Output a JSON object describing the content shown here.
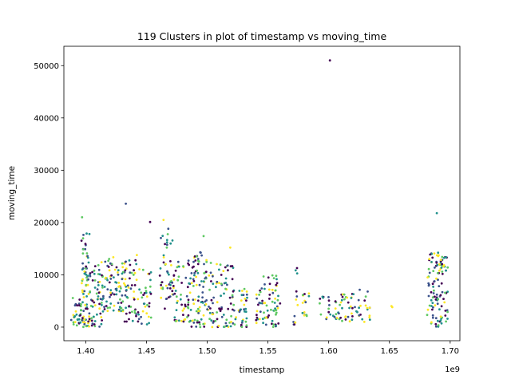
{
  "chart_data": {
    "type": "scatter",
    "title": "119 Clusters in plot of timestamp vs moving_time",
    "xlabel": "timestamp",
    "ylabel": "moving_time",
    "x_offset_label": "1e9",
    "x_scale": 1000000000,
    "xlim": [
      1.382,
      1.708
    ],
    "ylim": [
      -2600,
      53700
    ],
    "x_ticks": [
      1.4,
      1.45,
      1.5,
      1.55,
      1.6,
      1.65,
      1.7
    ],
    "x_tick_labels": [
      "1.40",
      "1.45",
      "1.50",
      "1.55",
      "1.60",
      "1.65",
      "1.70"
    ],
    "y_ticks": [
      0,
      10000,
      20000,
      30000,
      40000,
      50000
    ],
    "y_tick_labels": [
      "0",
      "10000",
      "20000",
      "30000",
      "40000",
      "50000"
    ],
    "grid": false,
    "legend": "none",
    "colormap": "viridis",
    "palette": [
      "#440154",
      "#3b528b",
      "#21918c",
      "#5ec962",
      "#fde725"
    ],
    "notable_points": [
      {
        "x": 1.601,
        "y": 51000
      },
      {
        "x": 1.433,
        "y": 23600
      },
      {
        "x": 1.689,
        "y": 21800
      },
      {
        "x": 1.397,
        "y": 21000
      },
      {
        "x": 1.464,
        "y": 20500
      },
      {
        "x": 1.453,
        "y": 20100
      },
      {
        "x": 1.468,
        "y": 18800
      },
      {
        "x": 1.403,
        "y": 17800
      },
      {
        "x": 1.497,
        "y": 17400
      },
      {
        "x": 1.519,
        "y": 15200
      }
    ],
    "clusters": [
      {
        "x_range": [
          1.388,
          1.396
        ],
        "y_range": [
          0,
          6500
        ],
        "n": 28
      },
      {
        "x_range": [
          1.396,
          1.402
        ],
        "y_range": [
          0,
          18000
        ],
        "n": 65
      },
      {
        "x_range": [
          1.402,
          1.414
        ],
        "y_range": [
          0,
          13000
        ],
        "n": 70
      },
      {
        "x_range": [
          1.414,
          1.432
        ],
        "y_range": [
          3000,
          13500
        ],
        "n": 80
      },
      {
        "x_range": [
          1.432,
          1.445
        ],
        "y_range": [
          1000,
          14500
        ],
        "n": 55
      },
      {
        "x_range": [
          1.445,
          1.454
        ],
        "y_range": [
          500,
          11000
        ],
        "n": 30
      },
      {
        "x_range": [
          1.461,
          1.472
        ],
        "y_range": [
          3000,
          18500
        ],
        "n": 45
      },
      {
        "x_range": [
          1.472,
          1.487
        ],
        "y_range": [
          1000,
          13000
        ],
        "n": 60
      },
      {
        "x_range": [
          1.487,
          1.502
        ],
        "y_range": [
          0,
          14500
        ],
        "n": 85
      },
      {
        "x_range": [
          1.502,
          1.522
        ],
        "y_range": [
          0,
          12500
        ],
        "n": 80
      },
      {
        "x_range": [
          1.522,
          1.534
        ],
        "y_range": [
          0,
          7500
        ],
        "n": 35
      },
      {
        "x_range": [
          1.54,
          1.546
        ],
        "y_range": [
          500,
          7500
        ],
        "n": 20
      },
      {
        "x_range": [
          1.546,
          1.56
        ],
        "y_range": [
          0,
          10000
        ],
        "n": 55
      },
      {
        "x_range": [
          1.571,
          1.575
        ],
        "y_range": [
          500,
          11500
        ],
        "n": 12
      },
      {
        "x_range": [
          1.578,
          1.584
        ],
        "y_range": [
          2000,
          7000
        ],
        "n": 14
      },
      {
        "x_range": [
          1.592,
          1.61
        ],
        "y_range": [
          1500,
          6000
        ],
        "n": 28
      },
      {
        "x_range": [
          1.61,
          1.622
        ],
        "y_range": [
          1000,
          6500
        ],
        "n": 28
      },
      {
        "x_range": [
          1.622,
          1.634
        ],
        "y_range": [
          1000,
          7500
        ],
        "n": 22
      },
      {
        "x_range": [
          1.651,
          1.653
        ],
        "y_range": [
          3500,
          4200
        ],
        "n": 2
      },
      {
        "x_range": [
          1.681,
          1.694
        ],
        "y_range": [
          0,
          14500
        ],
        "n": 95
      },
      {
        "x_range": [
          1.694,
          1.698
        ],
        "y_range": [
          800,
          13800
        ],
        "n": 22
      }
    ]
  }
}
